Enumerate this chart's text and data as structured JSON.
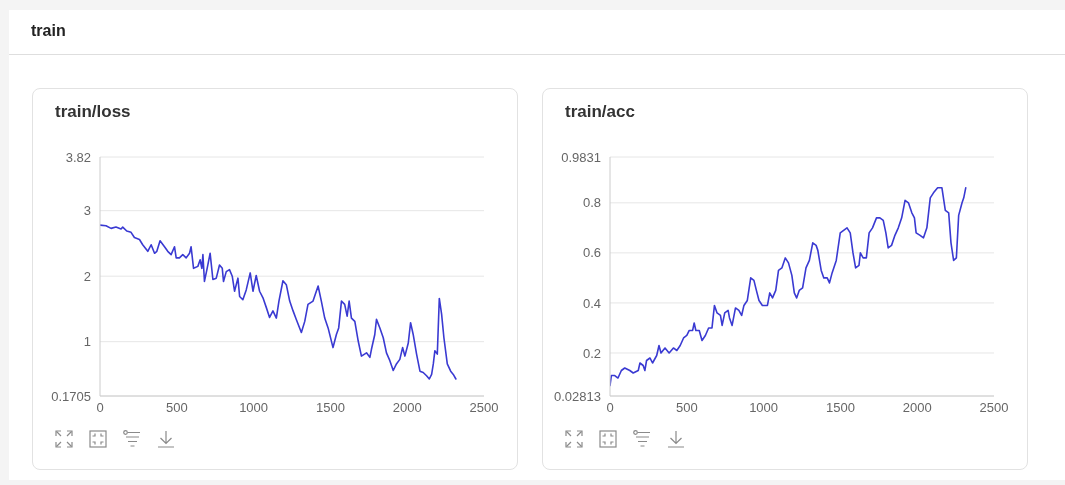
{
  "chart_data": [
    {
      "type": "other",
      "title": "train"
    },
    {
      "type": "line",
      "title": "train/loss",
      "color": "#3a3ad2",
      "marker": "none",
      "line_style": "solid",
      "grid": "y",
      "x": [
        0,
        39,
        72,
        104,
        137,
        148,
        174,
        202,
        224,
        257,
        278,
        311,
        333,
        355,
        370,
        391,
        420,
        441,
        463,
        485,
        496,
        517,
        539,
        561,
        583,
        593,
        609,
        637,
        652,
        663,
        670,
        680,
        696,
        717,
        735,
        757,
        778,
        796,
        804,
        822,
        843,
        861,
        876,
        898,
        909,
        930,
        952,
        978,
        996,
        1017,
        1039,
        1061,
        1083,
        1104,
        1126,
        1148,
        1165,
        1191,
        1213,
        1235,
        1257,
        1278,
        1311,
        1333,
        1354,
        1387,
        1420,
        1441,
        1463,
        1485,
        1517,
        1539,
        1554,
        1572,
        1593,
        1609,
        1622,
        1637,
        1659,
        1681,
        1702,
        1735,
        1757,
        1767,
        1789,
        1800,
        1822,
        1844,
        1865,
        1887,
        1909,
        1930,
        1952,
        1970,
        1985,
        2007,
        2022,
        2039,
        2061,
        2083,
        2104,
        2126,
        2144,
        2159,
        2170,
        2180,
        2196,
        2209,
        2224,
        2239,
        2261,
        2283,
        2300,
        2317
      ],
      "values": [
        2.78,
        2.77,
        2.73,
        2.75,
        2.72,
        2.75,
        2.69,
        2.67,
        2.59,
        2.56,
        2.48,
        2.38,
        2.48,
        2.35,
        2.38,
        2.54,
        2.45,
        2.38,
        2.33,
        2.45,
        2.28,
        2.28,
        2.33,
        2.28,
        2.35,
        2.45,
        2.12,
        2.15,
        2.25,
        2.12,
        2.33,
        1.92,
        2.1,
        2.35,
        1.95,
        1.97,
        2.17,
        2.12,
        1.92,
        2.07,
        2.1,
        2.0,
        1.77,
        1.97,
        1.69,
        1.64,
        1.79,
        2.05,
        1.77,
        2.01,
        1.77,
        1.67,
        1.52,
        1.37,
        1.47,
        1.36,
        1.62,
        1.93,
        1.87,
        1.62,
        1.47,
        1.34,
        1.14,
        1.31,
        1.57,
        1.62,
        1.85,
        1.62,
        1.36,
        1.21,
        0.91,
        1.11,
        1.21,
        1.62,
        1.57,
        1.39,
        1.62,
        1.36,
        1.31,
        1.01,
        0.78,
        0.83,
        0.76,
        0.88,
        1.11,
        1.34,
        1.21,
        1.06,
        0.83,
        0.71,
        0.56,
        0.66,
        0.73,
        0.91,
        0.78,
        0.98,
        1.29,
        1.11,
        0.81,
        0.55,
        0.53,
        0.48,
        0.43,
        0.5,
        0.66,
        0.86,
        0.81,
        1.66,
        1.42,
        1.06,
        0.66,
        0.55,
        0.5,
        0.43
      ],
      "xlim": [
        0,
        2500
      ],
      "xticks": [
        0,
        500,
        1000,
        1500,
        2000,
        2500
      ],
      "ylim": [
        0.1705,
        3.82
      ],
      "yticks": [
        0.1705,
        1,
        2,
        3,
        3.82
      ]
    },
    {
      "type": "line",
      "title": "train/acc",
      "color": "#3a3ad2",
      "marker": "none",
      "line_style": "solid",
      "grid": "y",
      "x": [
        0,
        9,
        31,
        52,
        74,
        96,
        129,
        151,
        184,
        195,
        216,
        227,
        238,
        260,
        277,
        304,
        319,
        332,
        358,
        385,
        413,
        435,
        457,
        479,
        500,
        516,
        538,
        548,
        559,
        581,
        599,
        621,
        642,
        664,
        680,
        697,
        719,
        730,
        747,
        769,
        778,
        795,
        817,
        839,
        857,
        872,
        894,
        916,
        937,
        953,
        970,
        992,
        1025,
        1040,
        1058,
        1079,
        1097,
        1119,
        1141,
        1162,
        1184,
        1200,
        1215,
        1232,
        1254,
        1276,
        1298,
        1320,
        1342,
        1353,
        1375,
        1392,
        1414,
        1429,
        1446,
        1473,
        1499,
        1521,
        1543,
        1564,
        1582,
        1599,
        1621,
        1630,
        1648,
        1669,
        1687,
        1709,
        1735,
        1757,
        1779,
        1796,
        1811,
        1833,
        1855,
        1877,
        1899,
        1921,
        1943,
        1965,
        1982,
        1993,
        2019,
        2041,
        2063,
        2085,
        2106,
        2133,
        2161,
        2183,
        2205,
        2220,
        2237,
        2255,
        2270,
        2292,
        2303,
        2316
      ],
      "values": [
        0.07,
        0.11,
        0.11,
        0.1,
        0.13,
        0.14,
        0.13,
        0.12,
        0.13,
        0.16,
        0.15,
        0.13,
        0.17,
        0.18,
        0.16,
        0.19,
        0.23,
        0.2,
        0.22,
        0.2,
        0.22,
        0.21,
        0.23,
        0.26,
        0.27,
        0.29,
        0.29,
        0.32,
        0.29,
        0.29,
        0.25,
        0.27,
        0.3,
        0.3,
        0.39,
        0.36,
        0.35,
        0.31,
        0.36,
        0.37,
        0.34,
        0.31,
        0.38,
        0.37,
        0.35,
        0.39,
        0.41,
        0.5,
        0.49,
        0.45,
        0.41,
        0.39,
        0.39,
        0.44,
        0.42,
        0.45,
        0.53,
        0.54,
        0.58,
        0.56,
        0.51,
        0.44,
        0.42,
        0.45,
        0.46,
        0.54,
        0.57,
        0.64,
        0.63,
        0.61,
        0.53,
        0.5,
        0.5,
        0.48,
        0.52,
        0.57,
        0.68,
        0.69,
        0.7,
        0.68,
        0.6,
        0.54,
        0.55,
        0.6,
        0.58,
        0.58,
        0.68,
        0.7,
        0.74,
        0.74,
        0.73,
        0.68,
        0.62,
        0.63,
        0.67,
        0.7,
        0.74,
        0.81,
        0.8,
        0.76,
        0.74,
        0.68,
        0.67,
        0.66,
        0.7,
        0.82,
        0.84,
        0.86,
        0.86,
        0.77,
        0.76,
        0.64,
        0.57,
        0.58,
        0.75,
        0.8,
        0.82,
        0.86
      ],
      "xlim": [
        0,
        2500
      ],
      "xticks": [
        0,
        500,
        1000,
        1500,
        2000,
        2500
      ],
      "ylim": [
        0.02813,
        0.9831
      ],
      "yticks": [
        0.02813,
        0.2,
        0.4,
        0.6,
        0.8,
        0.9831
      ]
    }
  ]
}
